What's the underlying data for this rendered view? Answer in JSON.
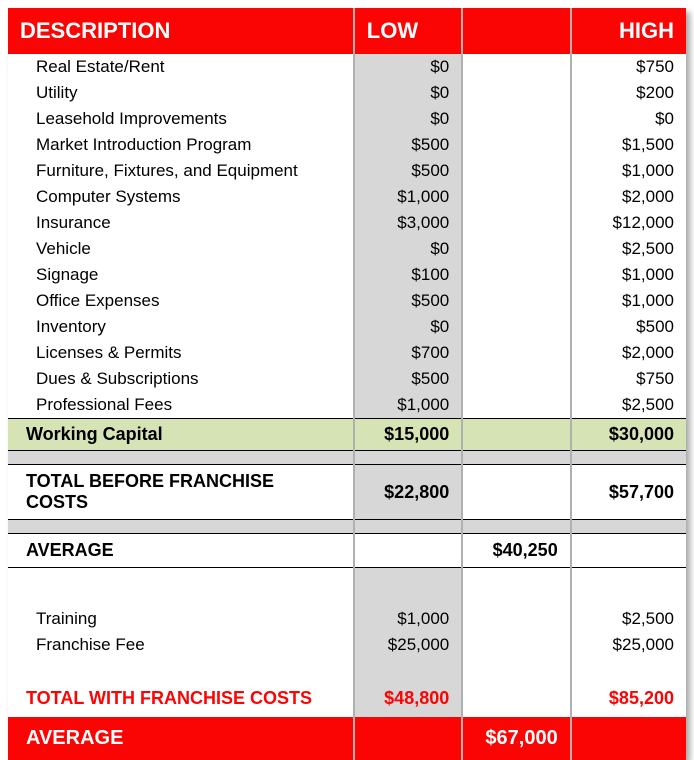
{
  "header": {
    "description": "DESCRIPTION",
    "low": "LOW",
    "mid": "",
    "high": "HIGH"
  },
  "items": [
    {
      "label": "Real Estate/Rent",
      "low": "$0",
      "high": "$750"
    },
    {
      "label": "Utility",
      "low": "$0",
      "high": "$200"
    },
    {
      "label": "Leasehold Improvements",
      "low": "$0",
      "high": "$0"
    },
    {
      "label": "Market Introduction Program",
      "low": "$500",
      "high": "$1,500"
    },
    {
      "label": "Furniture, Fixtures, and Equipment",
      "low": "$500",
      "high": "$1,000"
    },
    {
      "label": "Computer Systems",
      "low": "$1,000",
      "high": "$2,000"
    },
    {
      "label": "Insurance",
      "low": "$3,000",
      "high": "$12,000"
    },
    {
      "label": "Vehicle",
      "low": "$0",
      "high": "$2,500"
    },
    {
      "label": "Signage",
      "low": "$100",
      "high": "$1,000"
    },
    {
      "label": "Office Expenses",
      "low": "$500",
      "high": "$1,000"
    },
    {
      "label": "Inventory",
      "low": "$0",
      "high": "$500"
    },
    {
      "label": "Licenses & Permits",
      "low": "$700",
      "high": "$2,000"
    },
    {
      "label": "Dues & Subscriptions",
      "low": "$500",
      "high": "$750"
    },
    {
      "label": "Professional Fees",
      "low": "$1,000",
      "high": "$2,500"
    }
  ],
  "working_capital": {
    "label": "Working Capital",
    "low": "$15,000",
    "high": "$30,000"
  },
  "total_before": {
    "label": "TOTAL BEFORE FRANCHISE COSTS",
    "low": "$22,800",
    "high": "$57,700"
  },
  "average_before": {
    "label": "AVERAGE",
    "mid": "$40,250"
  },
  "franchise_items": [
    {
      "label": "Training",
      "low": "$1,000",
      "high": "$2,500"
    },
    {
      "label": "Franchise Fee",
      "low": "$25,000",
      "high": "$25,000"
    }
  ],
  "total_with": {
    "label": "TOTAL WITH FRANCHISE COSTS",
    "low": "$48,800",
    "high": "$85,200"
  },
  "final_average": {
    "label": "AVERAGE",
    "mid": "$67,000"
  },
  "style": {
    "header_bg": "#fb0404",
    "header_text": "#ffffff",
    "low_col_bg": "#d7d7d7",
    "wc_bg": "#d6e3b5",
    "divider_color": "#b0b0b0",
    "text_color": "#000000",
    "accent_red": "#fb0404",
    "body_fontsize": 17,
    "header_fontsize": 22,
    "bold_fontsize": 18
  }
}
